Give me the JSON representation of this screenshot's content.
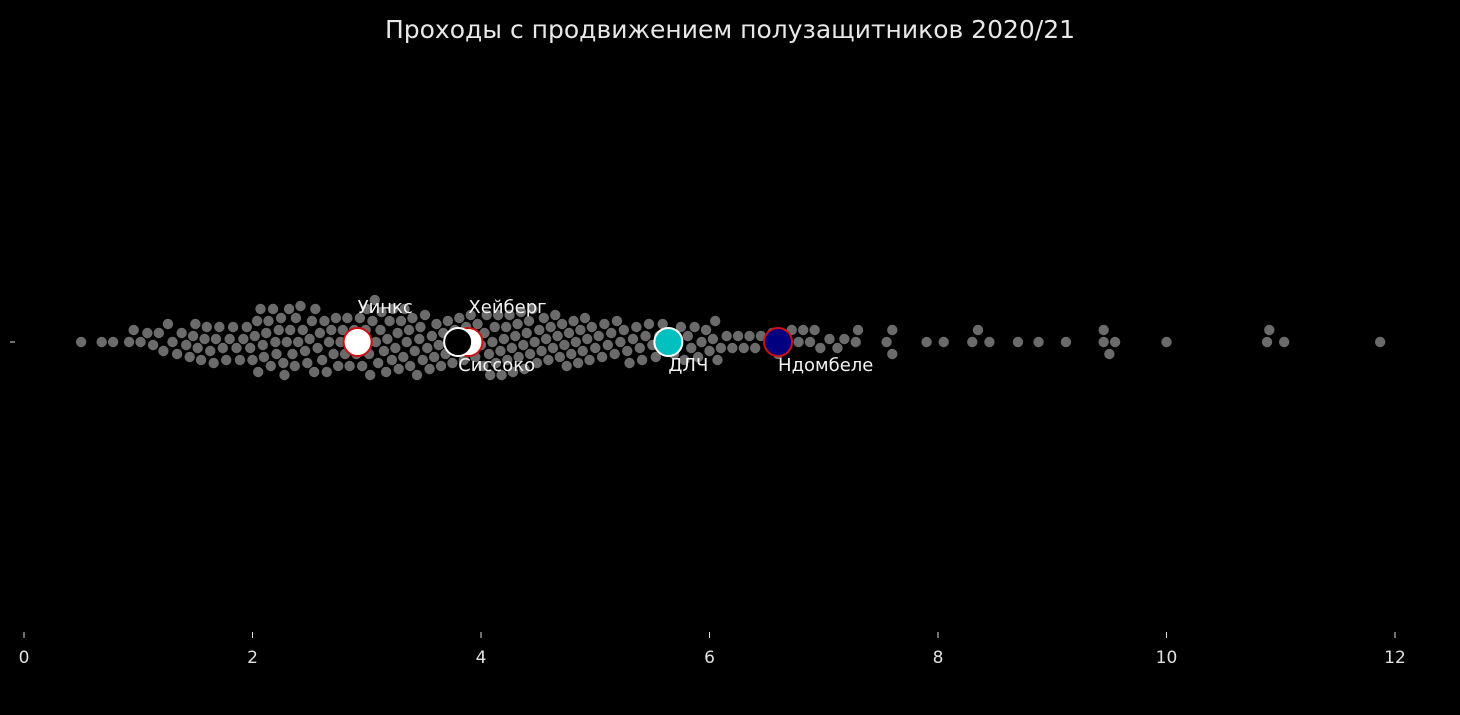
{
  "chart_data": {
    "type": "scatter",
    "subtype": "swarm",
    "title": "Проходы с продвижением полузащитников 2020/21",
    "xlabel": "",
    "ylabel": "",
    "xlim": [
      0,
      12.2
    ],
    "xticks": [
      "0",
      "2",
      "4",
      "6",
      "8",
      "10",
      "12"
    ],
    "grid": false,
    "background": "#000000",
    "point_color": "#6b6b6b",
    "values": [
      0.5,
      0.68,
      0.78,
      0.92,
      0.96,
      1.02,
      1.08,
      1.13,
      1.18,
      1.22,
      1.26,
      1.3,
      1.34,
      1.38,
      1.42,
      1.45,
      1.48,
      1.5,
      1.52,
      1.55,
      1.58,
      1.6,
      1.63,
      1.66,
      1.68,
      1.71,
      1.74,
      1.77,
      1.8,
      1.83,
      1.86,
      1.89,
      1.92,
      1.95,
      1.98,
      2.0,
      2.02,
      2.04,
      2.05,
      2.07,
      2.09,
      2.1,
      2.12,
      2.14,
      2.16,
      2.18,
      2.2,
      2.21,
      2.23,
      2.25,
      2.27,
      2.28,
      2.3,
      2.32,
      2.33,
      2.35,
      2.37,
      2.38,
      2.4,
      2.42,
      2.44,
      2.46,
      2.48,
      2.5,
      2.52,
      2.54,
      2.55,
      2.57,
      2.59,
      2.61,
      2.63,
      2.65,
      2.67,
      2.69,
      2.71,
      2.73,
      2.75,
      2.77,
      2.79,
      2.81,
      2.83,
      2.85,
      2.87,
      2.89,
      2.91,
      2.94,
      2.96,
      2.98,
      2.99,
      3.0,
      3.02,
      3.03,
      3.05,
      3.07,
      3.08,
      3.1,
      3.12,
      3.13,
      3.15,
      3.17,
      3.18,
      3.2,
      3.22,
      3.23,
      3.25,
      3.27,
      3.28,
      3.3,
      3.32,
      3.33,
      3.35,
      3.37,
      3.38,
      3.4,
      3.42,
      3.44,
      3.46,
      3.47,
      3.49,
      3.51,
      3.53,
      3.55,
      3.57,
      3.59,
      3.61,
      3.63,
      3.65,
      3.67,
      3.69,
      3.71,
      3.73,
      3.75,
      3.77,
      3.79,
      3.81,
      3.83,
      3.85,
      3.87,
      3.89,
      3.91,
      3.93,
      3.95,
      3.97,
      4.0,
      4.02,
      4.03,
      4.05,
      4.07,
      4.08,
      4.1,
      4.12,
      4.13,
      4.15,
      4.17,
      4.18,
      4.2,
      4.22,
      4.23,
      4.25,
      4.27,
      4.28,
      4.3,
      4.32,
      4.33,
      4.35,
      4.37,
      4.38,
      4.4,
      4.42,
      4.43,
      4.45,
      4.47,
      4.49,
      4.51,
      4.53,
      4.55,
      4.57,
      4.59,
      4.61,
      4.63,
      4.65,
      4.67,
      4.69,
      4.71,
      4.73,
      4.75,
      4.77,
      4.79,
      4.81,
      4.83,
      4.85,
      4.87,
      4.89,
      4.91,
      4.93,
      4.95,
      4.97,
      5.0,
      5.03,
      5.06,
      5.08,
      5.11,
      5.14,
      5.17,
      5.19,
      5.22,
      5.25,
      5.28,
      5.3,
      5.33,
      5.36,
      5.39,
      5.41,
      5.44,
      5.47,
      5.5,
      5.53,
      5.56,
      5.59,
      5.62,
      5.66,
      5.69,
      5.72,
      5.75,
      5.78,
      5.81,
      5.84,
      5.87,
      5.9,
      5.93,
      5.97,
      6.0,
      6.03,
      6.05,
      6.07,
      6.1,
      6.15,
      6.2,
      6.25,
      6.3,
      6.35,
      6.4,
      6.45,
      6.52,
      6.55,
      6.6,
      6.68,
      6.72,
      6.78,
      6.82,
      6.88,
      6.92,
      6.97,
      7.05,
      7.12,
      7.18,
      7.28,
      7.3,
      7.55,
      7.6,
      7.6,
      7.9,
      8.05,
      8.3,
      8.35,
      8.45,
      8.7,
      8.88,
      9.12,
      9.45,
      9.45,
      9.5,
      9.55,
      10.0,
      10.88,
      10.9,
      11.03,
      11.87
    ],
    "highlights": [
      {
        "name": "Уинкс",
        "value": 2.92,
        "fill": "#ffffff",
        "edge": "#d01010",
        "label_pos": "above"
      },
      {
        "name": "Хейберг",
        "value": 3.89,
        "fill": "#ffffff",
        "edge": "#d01010",
        "label_pos": "above"
      },
      {
        "name": "Сиссоко",
        "value": 3.8,
        "fill": "#000000",
        "edge": "#ffffff",
        "label_pos": "below"
      },
      {
        "name": "ДЛЧ",
        "value": 5.64,
        "fill": "#00c0c0",
        "edge": "#ffffff",
        "label_pos": "below"
      },
      {
        "name": "Ндомбеле",
        "value": 6.6,
        "fill": "#000080",
        "edge": "#d01010",
        "label_pos": "below"
      }
    ]
  }
}
